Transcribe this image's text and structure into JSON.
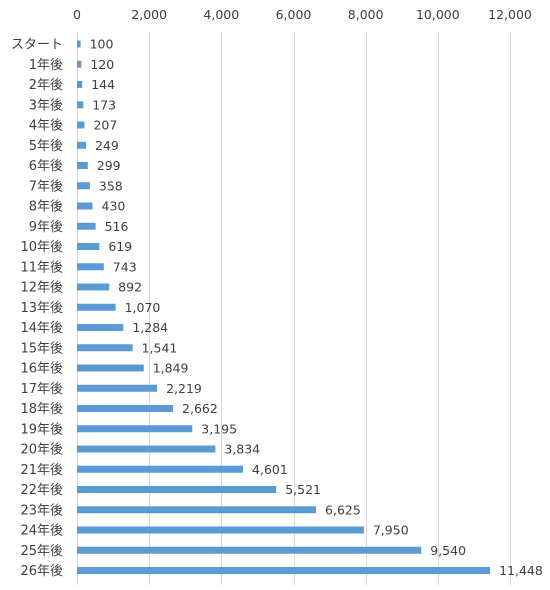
{
  "chart_data": {
    "type": "bar",
    "orientation": "horizontal",
    "title": "",
    "xlabel": "",
    "ylabel": "",
    "categories": [
      "スタート",
      "1年後",
      "2年後",
      "3年後",
      "4年後",
      "5年後",
      "6年後",
      "7年後",
      "8年後",
      "9年後",
      "10年後",
      "11年後",
      "12年後",
      "13年後",
      "14年後",
      "15年後",
      "16年後",
      "17年後",
      "18年後",
      "19年後",
      "20年後",
      "21年後",
      "22年後",
      "23年後",
      "24年後",
      "25年後",
      "26年後"
    ],
    "values": [
      100,
      120,
      144,
      173,
      207,
      249,
      299,
      358,
      430,
      516,
      619,
      743,
      892,
      1070,
      1284,
      1541,
      1849,
      2219,
      2662,
      3195,
      3834,
      4601,
      5521,
      6625,
      7950,
      9540,
      11448
    ],
    "value_labels": [
      "100",
      "120",
      "144",
      "173",
      "207",
      "249",
      "299",
      "358",
      "430",
      "516",
      "619",
      "743",
      "892",
      "1,070",
      "1,284",
      "1,541",
      "1,849",
      "2,219",
      "2,662",
      "3,195",
      "3,834",
      "4,601",
      "5,521",
      "6,625",
      "7,950",
      "9,540",
      "11,448"
    ],
    "xlim": [
      0,
      12000
    ],
    "xticks": [
      0,
      2000,
      4000,
      6000,
      8000,
      10000,
      12000
    ],
    "xtick_labels": [
      "0",
      "2,000",
      "4,000",
      "6,000",
      "8,000",
      "10,000",
      "12,000"
    ],
    "axis_position": "top",
    "grid": true,
    "legend": "none",
    "bar_color": "#5b9bd5"
  }
}
